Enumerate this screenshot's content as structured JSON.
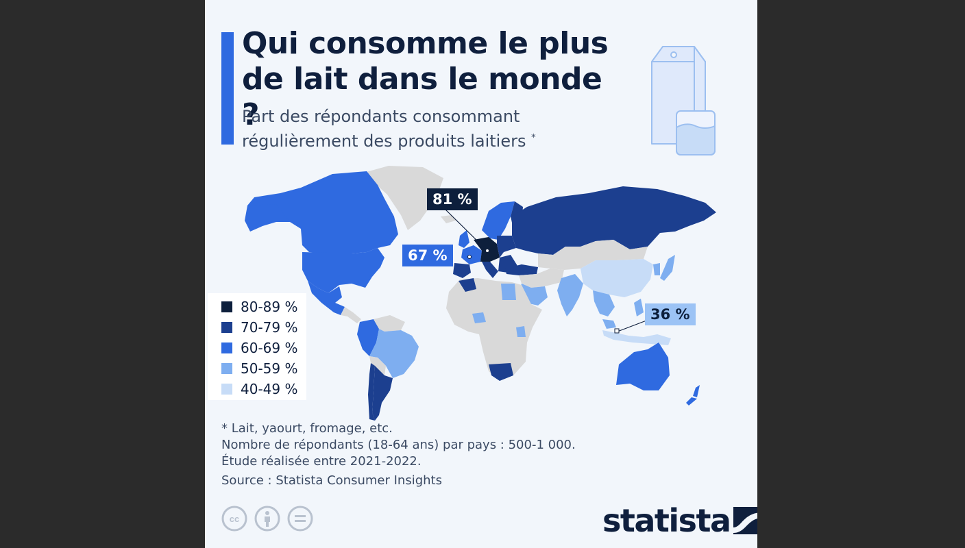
{
  "title": "Qui consomme le plus de lait dans le monde ?",
  "subtitle": "Part des répondants consommant régulièrement des produits laitiers",
  "subtitle_marker": "*",
  "legend": [
    {
      "label": "80-89 %",
      "color": "#0d1f3c"
    },
    {
      "label": "70-79 %",
      "color": "#1c3f8f"
    },
    {
      "label": "60-69 %",
      "color": "#2f6ae0"
    },
    {
      "label": "50-59 %",
      "color": "#7eaef0"
    },
    {
      "label": "40-49 %",
      "color": "#c7dcf7"
    }
  ],
  "callouts": {
    "germany": {
      "value": "81 %",
      "bg": "#0d1f3c",
      "fg": "#ffffff"
    },
    "spain": {
      "value": "67 %",
      "bg": "#2f6ae0",
      "fg": "#ffffff"
    },
    "indonesia": {
      "value": "36 %",
      "bg": "#9cc3f5",
      "fg": "#0d1f3c"
    }
  },
  "notes": {
    "line1": "* Lait, yaourt, fromage, etc.",
    "line2": "Nombre de répondants (18-64 ans) par pays : 500-1 000.",
    "line3": "Étude réalisée entre 2021-2022.",
    "source": "Source : Statista Consumer Insights"
  },
  "license_icons": [
    "cc-icon",
    "attribution-icon",
    "no-derivatives-icon"
  ],
  "license_text": {
    "cc": "cc"
  },
  "brand": "statista",
  "colors": {
    "nodata": "#d9d9d9",
    "background": "#f2f6fb",
    "accent": "#2f6ae0"
  }
}
